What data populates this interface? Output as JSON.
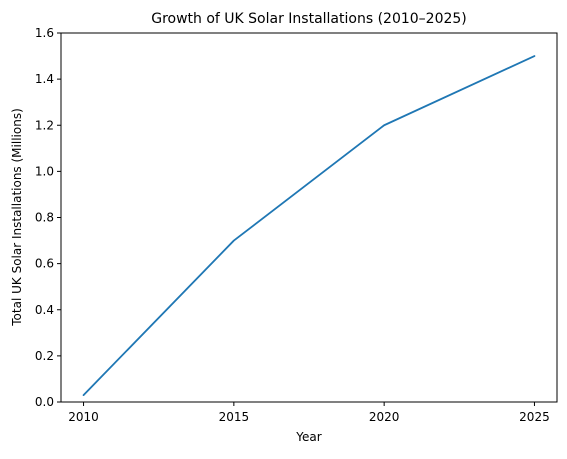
{
  "chart_data": {
    "type": "line",
    "title": "Growth of UK Solar Installations (2010–2025)",
    "xlabel": "Year",
    "ylabel": "Total UK Solar Installations (Millions)",
    "x": [
      2010,
      2015,
      2020,
      2025
    ],
    "series": [
      {
        "values": [
          0.03,
          0.7,
          1.2,
          1.5
        ],
        "color": "#1f77b4"
      }
    ],
    "xlim": [
      2009.25,
      2025.75
    ],
    "ylim": [
      0,
      1.6
    ],
    "xticks": [
      2010,
      2015,
      2020,
      2025
    ],
    "xtick_labels": [
      "2010",
      "2015",
      "2020",
      "2025"
    ],
    "yticks": [
      0,
      0.2,
      0.4,
      0.6,
      0.8,
      1.0,
      1.2,
      1.4,
      1.6
    ],
    "ytick_labels": [
      "0.0",
      "0.2",
      "0.4",
      "0.6",
      "0.8",
      "1.0",
      "1.2",
      "1.4",
      "1.6"
    ],
    "grid": false,
    "legend": "none"
  }
}
